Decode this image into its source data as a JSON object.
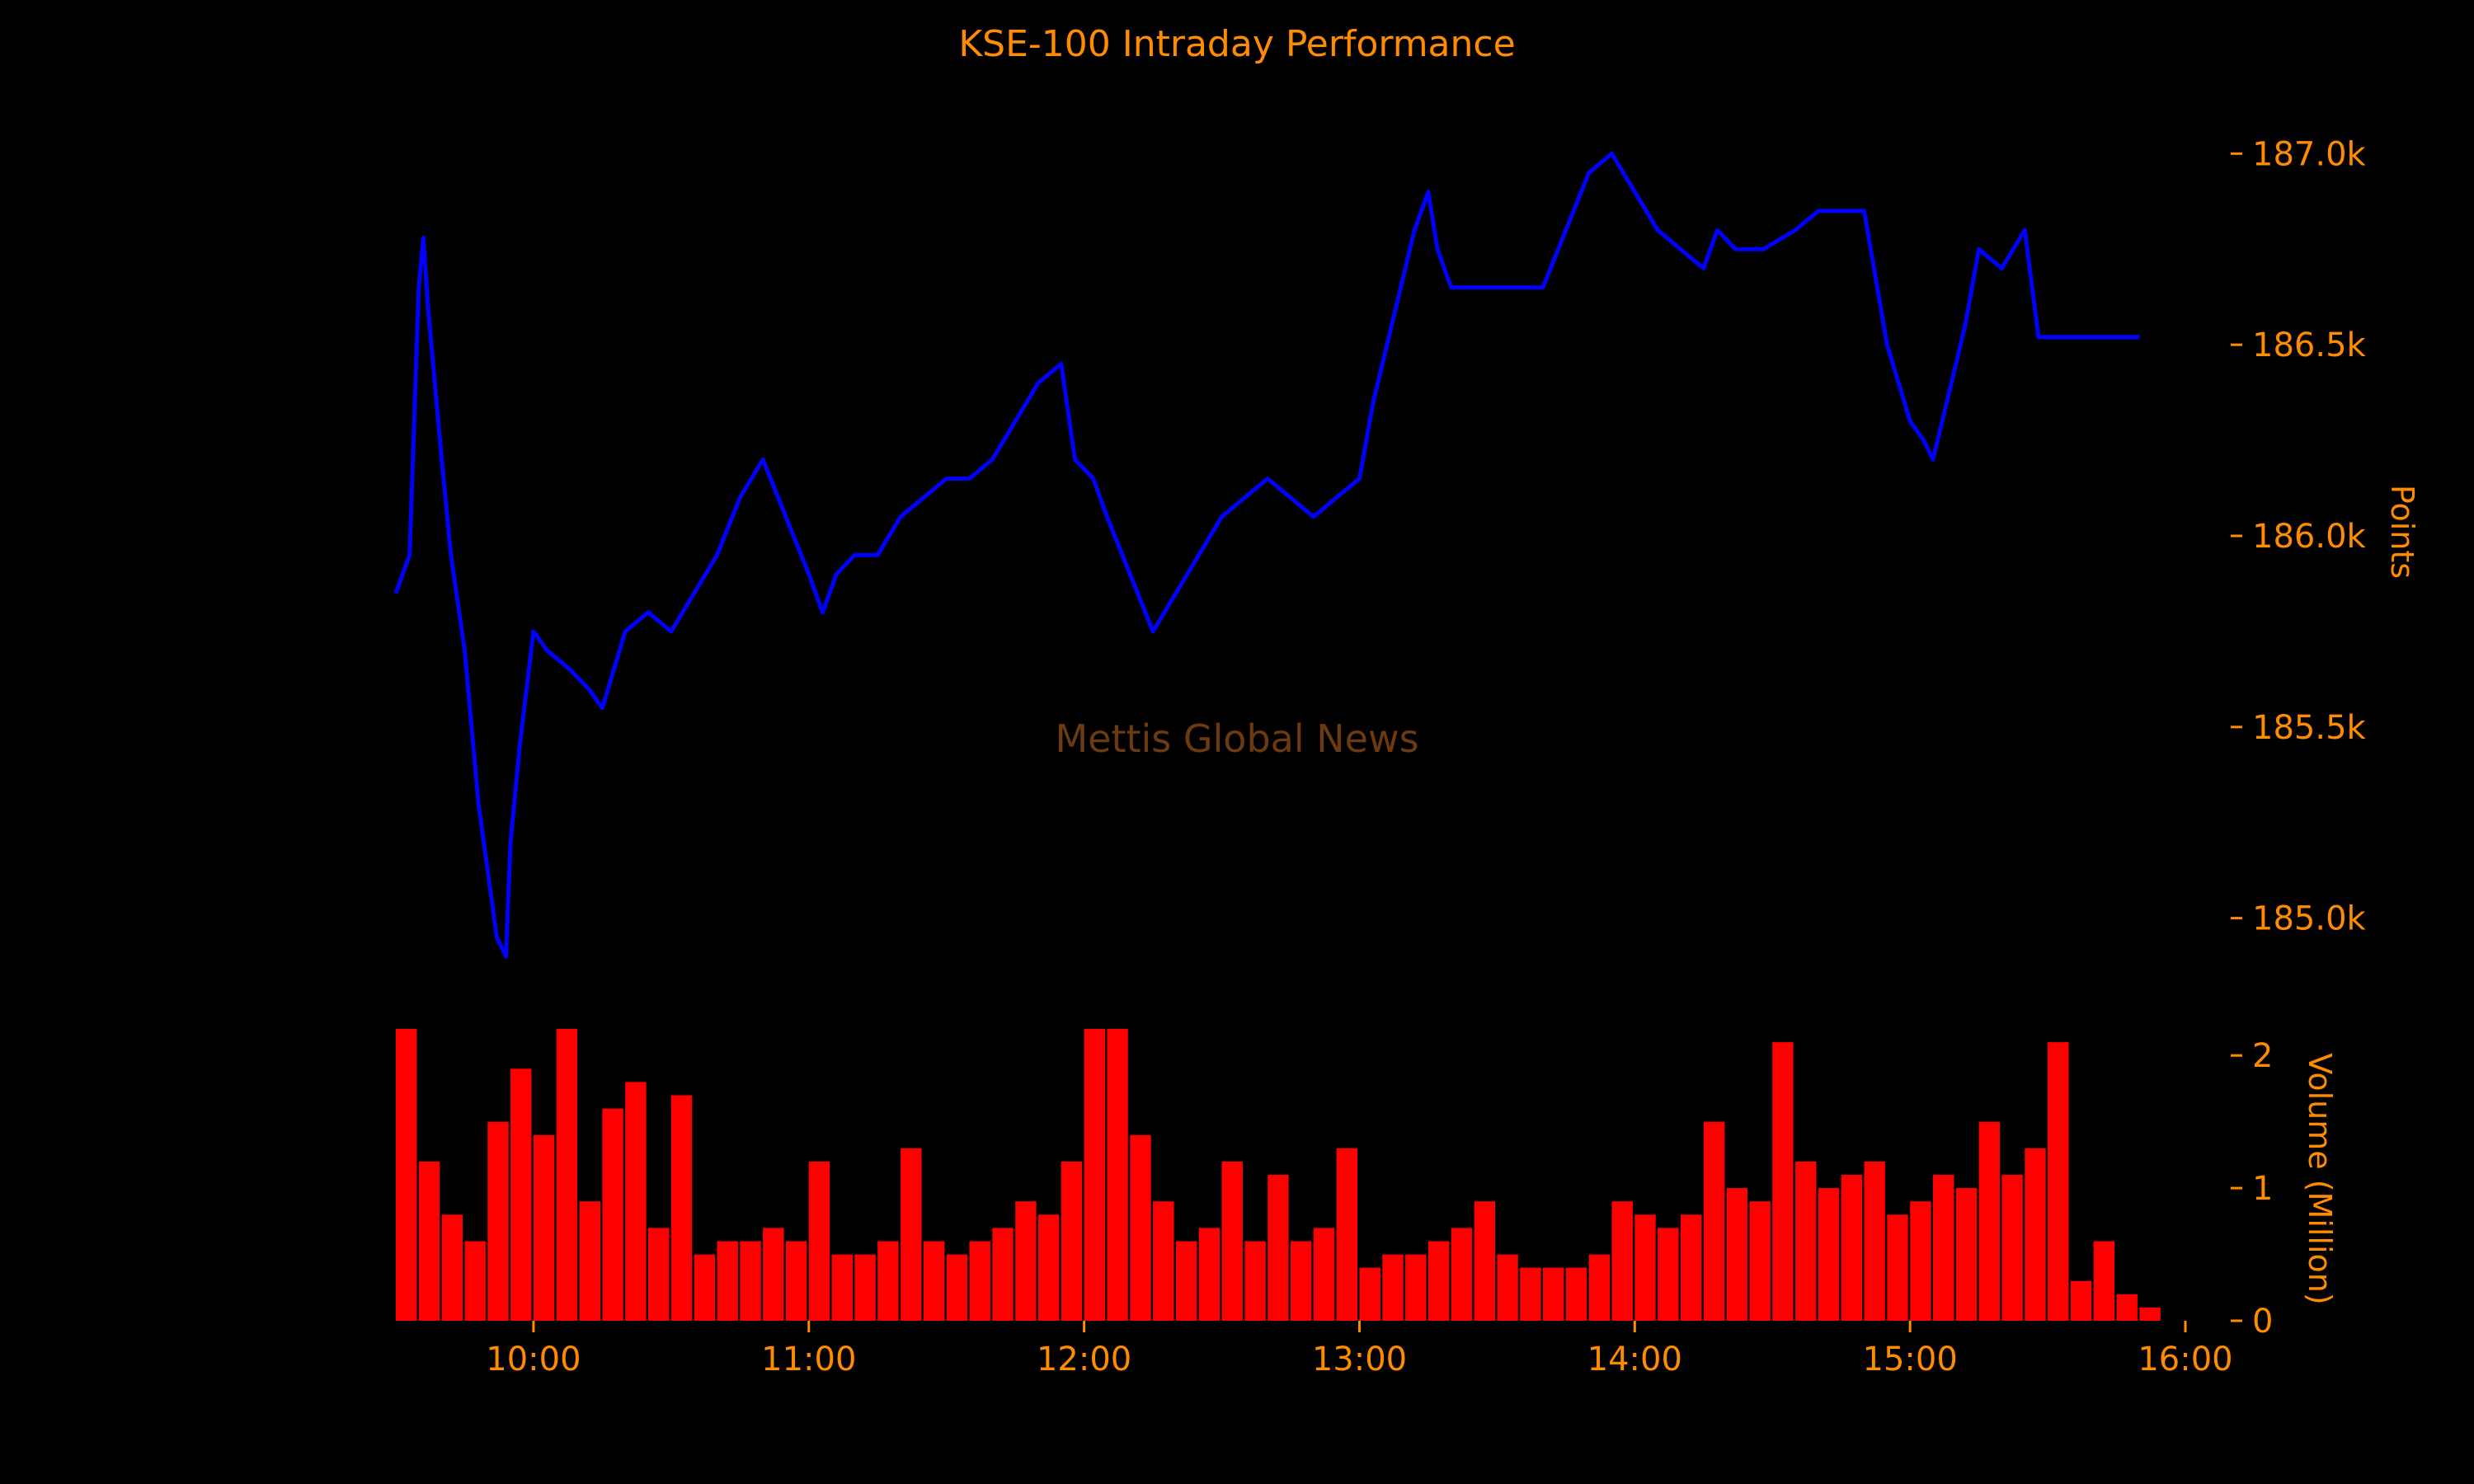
{
  "chart_data": {
    "type": "line",
    "title": "KSE-100 Intraday Performance",
    "watermark": "Mettis Global News",
    "colors": {
      "background": "#000000",
      "text": "#ff8c00",
      "line": "#0000ff",
      "volume": "#ff0000",
      "watermark": "#6b3a10"
    },
    "grid": false,
    "x_axis": {
      "min": "09:30",
      "max": "16:00",
      "ticks": [
        "10:00",
        "11:00",
        "12:00",
        "13:00",
        "14:00",
        "15:00",
        "16:00"
      ]
    },
    "price_panel": {
      "ylabel": "Points",
      "ylim": [
        184900,
        187100
      ],
      "yticks": [
        185000,
        185500,
        186000,
        186500,
        187000
      ],
      "ytick_labels": [
        "185.0k",
        "185.5k",
        "186.0k",
        "186.5k",
        "187.0k"
      ],
      "series": [
        {
          "x": [
            "09:30",
            "09:33",
            "09:35",
            "09:36",
            "09:37",
            "09:40",
            "09:42",
            "09:45",
            "09:48",
            "09:52",
            "09:54",
            "09:55",
            "09:57",
            "10:00",
            "10:03",
            "10:08",
            "10:12",
            "10:15",
            "10:20",
            "10:25",
            "10:30",
            "10:35",
            "10:40",
            "10:45",
            "10:50",
            "10:55",
            "11:00",
            "11:03",
            "11:06",
            "11:10",
            "11:12",
            "11:15",
            "11:20",
            "11:25",
            "11:30",
            "11:35",
            "11:40",
            "11:45",
            "11:50",
            "11:55",
            "11:58",
            "12:02",
            "12:05",
            "12:10",
            "12:15",
            "12:20",
            "12:25",
            "12:30",
            "12:35",
            "12:40",
            "12:45",
            "12:50",
            "12:55",
            "13:00",
            "13:03",
            "13:08",
            "13:12",
            "13:15",
            "13:17",
            "13:20",
            "13:25",
            "13:30",
            "13:35",
            "13:40",
            "13:45",
            "13:50",
            "13:55",
            "14:00",
            "14:05",
            "14:10",
            "14:15",
            "14:18",
            "14:22",
            "14:28",
            "14:35",
            "14:40",
            "14:45",
            "14:50",
            "14:55",
            "15:00",
            "15:03",
            "15:05",
            "15:08",
            "15:10",
            "15:12",
            "15:15",
            "15:20",
            "15:25",
            "15:28",
            "15:30",
            "15:30",
            "15:50"
          ],
          "values": [
            185850,
            185950,
            186650,
            186780,
            186600,
            186200,
            185950,
            185700,
            185300,
            184950,
            184900,
            185200,
            185450,
            185750,
            185700,
            185650,
            185600,
            185550,
            185750,
            185800,
            185750,
            185850,
            185950,
            186100,
            186200,
            186050,
            185900,
            185800,
            185900,
            185950,
            185950,
            185950,
            186050,
            186100,
            186150,
            186150,
            186200,
            186300,
            186400,
            186450,
            186200,
            186150,
            186050,
            185900,
            185750,
            185850,
            185950,
            186050,
            186100,
            186150,
            186100,
            186050,
            186100,
            186150,
            186350,
            186600,
            186800,
            186900,
            186750,
            186650,
            186650,
            186650,
            186650,
            186650,
            186800,
            186950,
            187000,
            186900,
            186800,
            186750,
            186700,
            186800,
            186750,
            186750,
            186800,
            186850,
            186850,
            186850,
            186500,
            186300,
            186250,
            186200,
            186350,
            186450,
            186550,
            186750,
            186700,
            186800,
            186520,
            186520,
            186520,
            186520
          ]
        }
      ]
    },
    "volume_panel": {
      "ylabel": "Volume (Million)",
      "ylim": [
        0,
        2.25
      ],
      "yticks": [
        0,
        1,
        2
      ],
      "ytick_labels": [
        "0",
        "1",
        "2"
      ],
      "series": [
        {
          "x": [
            "09:30",
            "09:35",
            "09:40",
            "09:45",
            "09:50",
            "09:55",
            "10:00",
            "10:05",
            "10:10",
            "10:15",
            "10:20",
            "10:25",
            "10:30",
            "10:35",
            "10:40",
            "10:45",
            "10:50",
            "10:55",
            "11:00",
            "11:05",
            "11:10",
            "11:15",
            "11:20",
            "11:25",
            "11:30",
            "11:35",
            "11:40",
            "11:45",
            "11:50",
            "11:55",
            "12:00",
            "12:05",
            "12:10",
            "12:15",
            "12:20",
            "12:25",
            "12:30",
            "12:35",
            "12:40",
            "12:45",
            "12:50",
            "12:55",
            "13:00",
            "13:05",
            "13:10",
            "13:15",
            "13:20",
            "13:25",
            "13:30",
            "13:35",
            "13:40",
            "13:45",
            "13:50",
            "13:55",
            "14:00",
            "14:05",
            "14:10",
            "14:15",
            "14:20",
            "14:25",
            "14:30",
            "14:35",
            "14:40",
            "14:45",
            "14:50",
            "14:55",
            "15:00",
            "15:05",
            "15:10",
            "15:15",
            "15:20",
            "15:25",
            "15:30",
            "15:35",
            "15:40",
            "15:45",
            "15:50"
          ],
          "values": [
            2.2,
            1.2,
            0.8,
            0.6,
            1.5,
            1.9,
            1.4,
            2.2,
            0.9,
            1.6,
            1.8,
            0.7,
            1.7,
            0.5,
            0.6,
            0.6,
            0.7,
            0.6,
            1.2,
            0.5,
            0.5,
            0.6,
            1.3,
            0.6,
            0.5,
            0.6,
            0.7,
            0.9,
            0.8,
            1.2,
            2.2,
            2.2,
            1.4,
            0.9,
            0.6,
            0.7,
            1.2,
            0.6,
            1.1,
            0.6,
            0.7,
            1.3,
            0.4,
            0.5,
            0.5,
            0.6,
            0.7,
            0.9,
            0.5,
            0.4,
            0.4,
            0.4,
            0.5,
            0.9,
            0.8,
            0.7,
            0.8,
            1.5,
            1.0,
            0.9,
            2.1,
            1.2,
            1.0,
            1.1,
            1.2,
            0.8,
            0.9,
            1.1,
            1.0,
            1.5,
            1.1,
            1.3,
            2.1,
            0.3,
            0.6,
            0.2,
            0.1
          ]
        }
      ]
    }
  }
}
